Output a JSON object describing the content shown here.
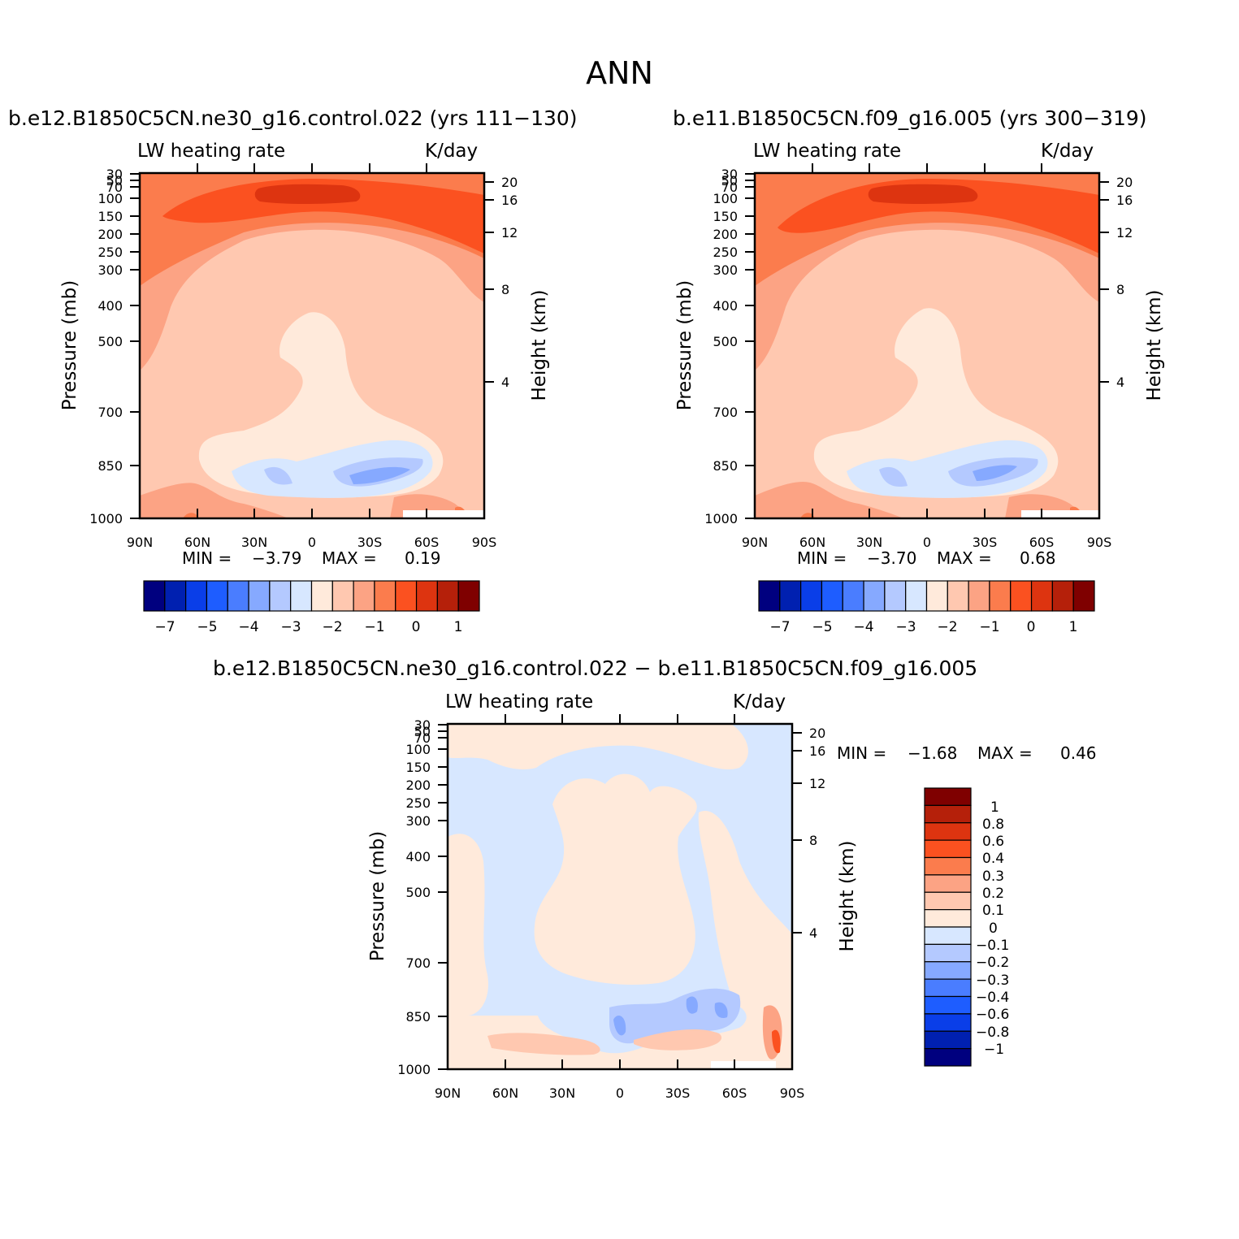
{
  "figure": {
    "title": "ANN",
    "variable_label": "LW heating rate",
    "units": "K/day"
  },
  "chart_data": [
    {
      "type": "heatmap",
      "title": "b.e12.B1850C5CN.ne30_g16.control.022 (yrs 111−130)",
      "variable": "LW heating rate",
      "units": "K/day",
      "xlabel": "",
      "ylabel": "Pressure (mb)",
      "ylabel_right": "Height (km)",
      "x_ticks": [
        "90N",
        "60N",
        "30N",
        "0",
        "30S",
        "60S",
        "90S"
      ],
      "y_ticks": [
        "30",
        "50",
        "70",
        "100",
        "150",
        "200",
        "250",
        "300",
        "400",
        "500",
        "700",
        "850",
        "1000"
      ],
      "y_ticks_right": [
        "20",
        "16",
        "12",
        "8",
        "4"
      ],
      "min_label": "MIN =",
      "min": "−3.79",
      "max_label": "MAX =",
      "max": "0.19",
      "colorbar_ticks": [
        "−7",
        "−5",
        "−4",
        "−3",
        "−2",
        "−1",
        "0",
        "1"
      ]
    },
    {
      "type": "heatmap",
      "title": "b.e11.B1850C5CN.f09_g16.005 (yrs 300−319)",
      "variable": "LW heating rate",
      "units": "K/day",
      "xlabel": "",
      "ylabel": "Pressure (mb)",
      "ylabel_right": "Height (km)",
      "x_ticks": [
        "90N",
        "60N",
        "30N",
        "0",
        "30S",
        "60S",
        "90S"
      ],
      "y_ticks": [
        "30",
        "50",
        "70",
        "100",
        "150",
        "200",
        "250",
        "300",
        "400",
        "500",
        "700",
        "850",
        "1000"
      ],
      "y_ticks_right": [
        "20",
        "16",
        "12",
        "8",
        "4"
      ],
      "min_label": "MIN =",
      "min": "−3.70",
      "max_label": "MAX =",
      "max": "0.68",
      "colorbar_ticks": [
        "−7",
        "−5",
        "−4",
        "−3",
        "−2",
        "−1",
        "0",
        "1"
      ]
    },
    {
      "type": "heatmap",
      "title": "b.e12.B1850C5CN.ne30_g16.control.022 − b.e11.B1850C5CN.f09_g16.005",
      "variable": "LW heating rate",
      "units": "K/day",
      "xlabel": "",
      "ylabel": "Pressure (mb)",
      "ylabel_right": "Height (km)",
      "x_ticks": [
        "90N",
        "60N",
        "30N",
        "0",
        "30S",
        "60S",
        "90S"
      ],
      "y_ticks": [
        "30",
        "50",
        "70",
        "100",
        "150",
        "200",
        "250",
        "300",
        "400",
        "500",
        "700",
        "850",
        "1000"
      ],
      "y_ticks_right": [
        "20",
        "16",
        "12",
        "8",
        "4"
      ],
      "min_label": "MIN =",
      "min": "−1.68",
      "max_label": "MAX =",
      "max": "0.46",
      "colorbar_ticks": [
        "1",
        "0.8",
        "0.6",
        "0.4",
        "0.3",
        "0.2",
        "0.1",
        "0",
        "−0.1",
        "−0.2",
        "−0.3",
        "−0.4",
        "−0.6",
        "−0.8",
        "−1"
      ]
    }
  ],
  "colors": {
    "scale": [
      "#00007f",
      "#0020b0",
      "#0a3ee8",
      "#1e5dff",
      "#4a7dff",
      "#86a9ff",
      "#b4c9ff",
      "#d7e7ff",
      "#ffeadb",
      "#ffc8b0",
      "#fca384",
      "#fb7c4d",
      "#fb5120",
      "#dd3410",
      "#b5200a",
      "#7f0000"
    ],
    "axis": "#000000"
  }
}
